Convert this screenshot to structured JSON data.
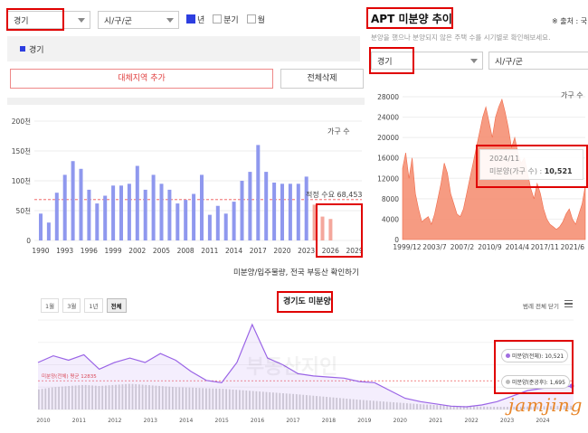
{
  "left_panel": {
    "region_select": "경기",
    "city_select": "시/구/군",
    "period_options": [
      {
        "label": "년",
        "checked": true
      },
      {
        "label": "분기",
        "checked": false
      },
      {
        "label": "월",
        "checked": false
      }
    ],
    "selected_region_tag": "경기",
    "add_compare_button": "대체지역 추가",
    "delete_all_button": "전체삭제"
  },
  "bar_chart": {
    "legend_label": "가구 수",
    "annotation": "적정 수요 68,453",
    "footer_link": "미분양/입주물량, 전국 부동산 확인하기"
  },
  "right_panel": {
    "title": "APT 미분양 추이",
    "source_label": "※ 출처 : 국",
    "subtitle": "분양을 했으나 분양되지 않은 주택 수를 시기별로 확인해보세요.",
    "region_select": "경기",
    "city_select": "시/구/군",
    "legend_label": "가구 수",
    "tooltip_date": "2024/11",
    "tooltip_label": "미분양(가구 수) : ",
    "tooltip_value": "10,521"
  },
  "bottom_chart": {
    "title": "경기도 미분양",
    "range_buttons": [
      "1월",
      "3월",
      "1년",
      "전체"
    ],
    "close_all": "범례 전체 닫기",
    "avg_line_label": "미분양(전체) 평균 12835",
    "legend_total": "미분양(전체): 10,521",
    "legend_after": "미분양(준공후): 1,695",
    "watermark": "부동산지인",
    "signature": "jamjing"
  },
  "chart_data": [
    {
      "type": "bar",
      "categories": [
        "1990",
        "1991",
        "1992",
        "1993",
        "1994",
        "1995",
        "1996",
        "1997",
        "1998",
        "1999",
        "2000",
        "2001",
        "2002",
        "2003",
        "2004",
        "2005",
        "2006",
        "2007",
        "2008",
        "2009",
        "2010",
        "2011",
        "2012",
        "2013",
        "2014",
        "2015",
        "2016",
        "2017",
        "2018",
        "2019",
        "2020",
        "2021",
        "2022",
        "2023",
        "2024",
        "2025",
        "2026",
        "2027",
        "2028",
        "2029"
      ],
      "x_tick_labels": [
        "1990",
        "1993",
        "1996",
        "1999",
        "2002",
        "2005",
        "2008",
        "2011",
        "2014",
        "2017",
        "2020",
        "2023",
        "2026",
        "2029"
      ],
      "values": [
        45,
        30,
        80,
        110,
        133,
        120,
        85,
        62,
        75,
        92,
        92,
        95,
        125,
        85,
        110,
        95,
        85,
        62,
        68,
        78,
        110,
        43,
        58,
        45,
        65,
        100,
        115,
        160,
        115,
        97,
        95,
        95,
        95,
        107,
        60,
        40,
        36,
        0,
        0,
        0
      ],
      "forecast_from_index": 34,
      "y_tick_labels": [
        "0",
        "50천",
        "100천",
        "150천",
        "200천"
      ],
      "ylim": [
        0,
        200
      ],
      "reference_line": 68.453,
      "ylabel": "가구 수"
    },
    {
      "type": "area",
      "x_tick_labels": [
        "1999/12",
        "2003/7",
        "2007/2",
        "2010/9",
        "2014/4",
        "2017/11",
        "2021/6"
      ],
      "y_tick_labels": [
        "0",
        "4000",
        "8000",
        "12000",
        "16000",
        "20000",
        "24000",
        "28000"
      ],
      "ylim": [
        0,
        28000
      ],
      "ylabel": "가구 수",
      "values": [
        14000,
        17000,
        12000,
        16000,
        9000,
        6000,
        3500,
        4000,
        4500,
        3000,
        5000,
        8000,
        11000,
        15000,
        13000,
        9000,
        7000,
        5000,
        4500,
        6000,
        9000,
        12000,
        15000,
        18000,
        21000,
        24000,
        26000,
        23000,
        20000,
        24000,
        26000,
        27500,
        25000,
        22000,
        18000,
        20000,
        17000,
        15000,
        16000,
        13000,
        10000,
        8000,
        11000,
        9000,
        6000,
        4000,
        3000,
        2500,
        2000,
        2500,
        3500,
        5000,
        6000,
        4000,
        3000,
        5000,
        7000,
        10521
      ],
      "last_point": {
        "date": "2024/11",
        "value": 10521
      }
    },
    {
      "type": "line",
      "x_tick_labels": [
        "2010",
        "2011",
        "2012",
        "2013",
        "2014",
        "2015",
        "2016",
        "2017",
        "2018",
        "2019",
        "2020",
        "2021",
        "2022",
        "2023",
        "2024"
      ],
      "series": [
        {
          "name": "미분양(전체)",
          "values": [
            21000,
            24000,
            22000,
            24500,
            18000,
            21000,
            23000,
            21000,
            25000,
            22000,
            17000,
            13000,
            12000,
            21000,
            38000,
            23000,
            20000,
            16000,
            15000,
            14500,
            14000,
            12500,
            12000,
            8500,
            5000,
            3500,
            2500,
            1500,
            1200,
            2000,
            3500,
            6000,
            8500,
            9500,
            10000,
            10521
          ]
        },
        {
          "name": "미분양(준공후)",
          "values": [
            9000,
            10000,
            10500,
            11000,
            10500,
            11000,
            11500,
            11000,
            10500,
            10000,
            9800,
            9500,
            9300,
            8800,
            8300,
            7800,
            7300,
            6800,
            6200,
            5600,
            5000,
            4400,
            3900,
            3400,
            2900,
            2400,
            2000,
            1700,
            1500,
            1300,
            1200,
            1200,
            1300,
            1400,
            1550,
            1695
          ]
        }
      ],
      "reference_line": 12835
    }
  ]
}
